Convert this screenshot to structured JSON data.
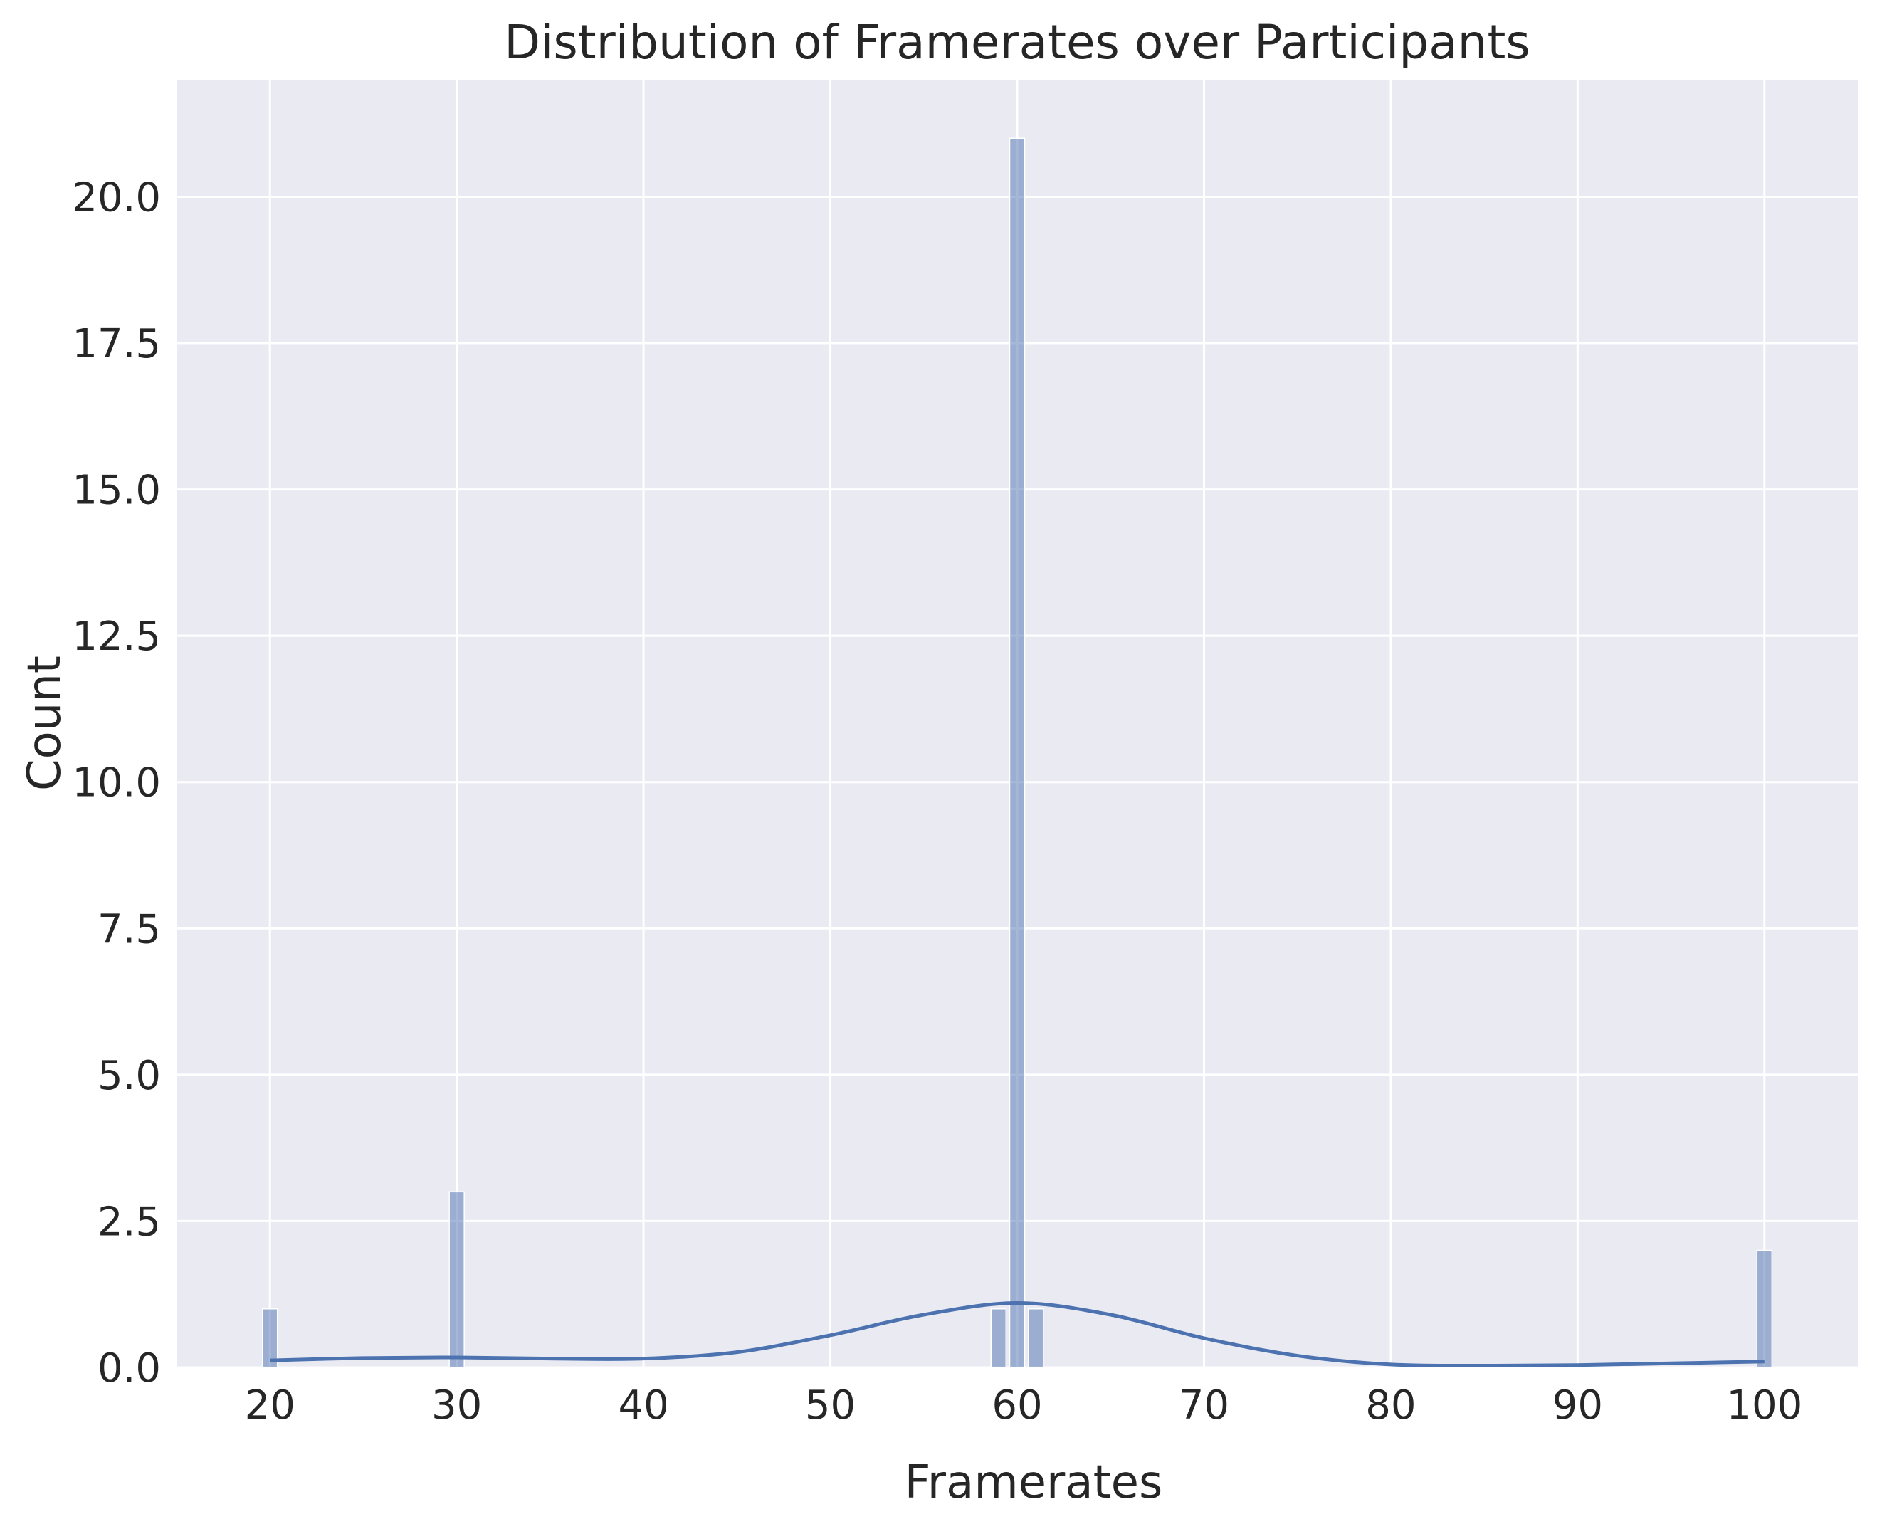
{
  "chart_data": {
    "type": "bar",
    "title": "Distribution of Framerates over Participants",
    "xlabel": "Framerates",
    "ylabel": "Count",
    "xlim": [
      15.0,
      105.0
    ],
    "ylim": [
      0,
      22
    ],
    "xticks": [
      20,
      30,
      40,
      50,
      60,
      70,
      80,
      90,
      100
    ],
    "xtick_labels": [
      "20",
      "30",
      "40",
      "50",
      "60",
      "70",
      "80",
      "90",
      "100"
    ],
    "yticks": [
      0,
      2.5,
      5,
      7.5,
      10,
      12.5,
      15,
      17.5,
      20
    ],
    "ytick_labels": [
      "0.0",
      "2.5",
      "5.0",
      "7.5",
      "10.0",
      "12.5",
      "15.0",
      "17.5",
      "20.0"
    ],
    "bars": [
      {
        "x": 20,
        "count": 1
      },
      {
        "x": 30,
        "count": 3
      },
      {
        "x": 59,
        "count": 1
      },
      {
        "x": 60,
        "count": 21
      },
      {
        "x": 61,
        "count": 1
      },
      {
        "x": 100,
        "count": 2
      }
    ],
    "bin_width": 0.8,
    "kde": {
      "x": [
        20,
        25,
        30,
        35,
        40,
        45,
        50,
        55,
        60,
        65,
        70,
        75,
        80,
        85,
        90,
        95,
        100
      ],
      "y": [
        0.12,
        0.16,
        0.17,
        0.15,
        0.15,
        0.26,
        0.55,
        0.9,
        1.1,
        0.9,
        0.5,
        0.2,
        0.05,
        0.03,
        0.04,
        0.07,
        0.1
      ]
    },
    "grid": true,
    "colors": {
      "background": "#eaeaf2",
      "grid": "#ffffff",
      "bar_fill": "#4c72b0",
      "kde_line": "#4c72b0",
      "text": "#262626"
    }
  }
}
